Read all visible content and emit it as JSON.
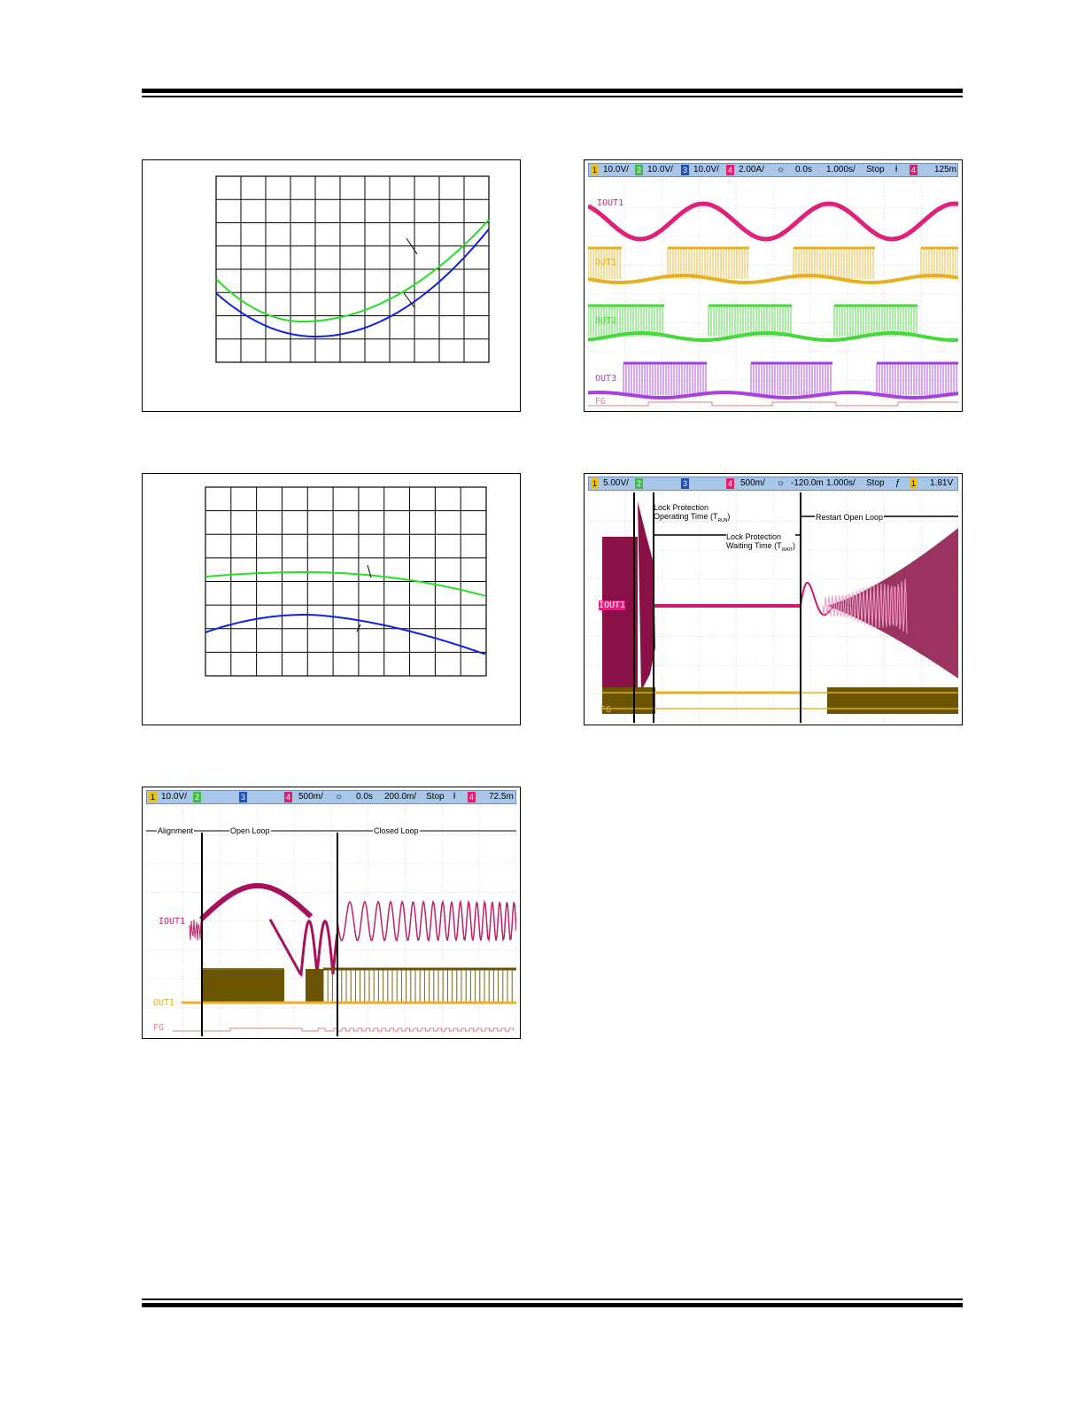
{
  "scope_top_right": {
    "header": {
      "ch1": "10.0V/",
      "ch2": "10.0V/",
      "ch3": "10.0V/",
      "ch4": "2.00A/",
      "delay": "0.0s",
      "timebase": "1.000s/",
      "mode": "Stop",
      "trig": "125m"
    },
    "labels": {
      "iout": "IOUT1",
      "out1": "OUT1",
      "out2": "OUT2",
      "out3": "OUT3",
      "fg": "FG"
    },
    "colors": {
      "iout": "#e0207a",
      "out1": "#e6b020",
      "out2": "#44d838",
      "out3": "#a840e0",
      "fg": "#e08080"
    }
  },
  "scope_mid_right": {
    "header": {
      "ch1": "5.00V/",
      "ch4": "500m/",
      "delay": "-120.0m",
      "timebase": "1.000s/",
      "mode": "Stop",
      "trig": "1.81V"
    },
    "annotations": {
      "lock_op_1": "Lock Protection",
      "lock_op_2": "Operating Time (T",
      "lock_op_sub": "RUN",
      "lock_wait_1": "Lock Protection",
      "lock_wait_2": "Waiting Time (T",
      "lock_wait_sub": "WAIT",
      "restart": "Restart Open Loop"
    },
    "labels": {
      "iout": "IOUT1",
      "fg": "FG"
    }
  },
  "scope_bottom_left": {
    "header": {
      "ch1": "10.0V/",
      "ch4": "500m/",
      "delay": "0.0s",
      "timebase": "200.0m/",
      "mode": "Stop",
      "trig": "72.5m"
    },
    "annotations": {
      "alignment": "Alignment",
      "open_loop": "Open Loop",
      "closed_loop": "Closed Loop"
    },
    "labels": {
      "iout": "IOUT1",
      "out1": "OUT1",
      "fg": "FG"
    }
  },
  "graph_colors": {
    "green": "#22e022",
    "blue": "#1020e0"
  }
}
